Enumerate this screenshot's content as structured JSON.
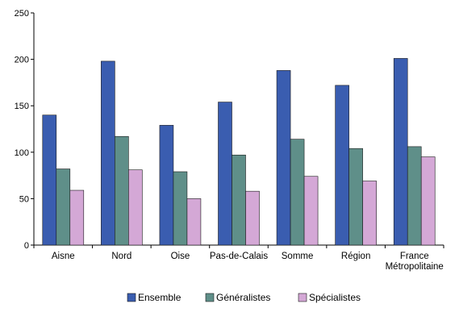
{
  "chart_data": {
    "type": "bar",
    "title": "",
    "xlabel": "",
    "ylabel": "",
    "categories": [
      "Aisne",
      "Nord",
      "Oise",
      "Pas-de-Calais",
      "Somme",
      "Région",
      "France Métropolitaine"
    ],
    "ylim": [
      0,
      250
    ],
    "yticks": [
      0,
      50,
      100,
      150,
      200,
      250
    ],
    "grid": false,
    "legend_position": "bottom",
    "series": [
      {
        "name": "Ensemble",
        "color": "#3a5db0",
        "values": [
          140,
          198,
          129,
          154,
          188,
          172,
          201
        ]
      },
      {
        "name": "Généralistes",
        "color": "#5f8f89",
        "values": [
          82,
          117,
          79,
          97,
          114,
          104,
          106
        ]
      },
      {
        "name": "Spécialistes",
        "color": "#d4a8d6",
        "values": [
          59,
          81,
          50,
          58,
          74,
          69,
          95
        ]
      }
    ]
  }
}
